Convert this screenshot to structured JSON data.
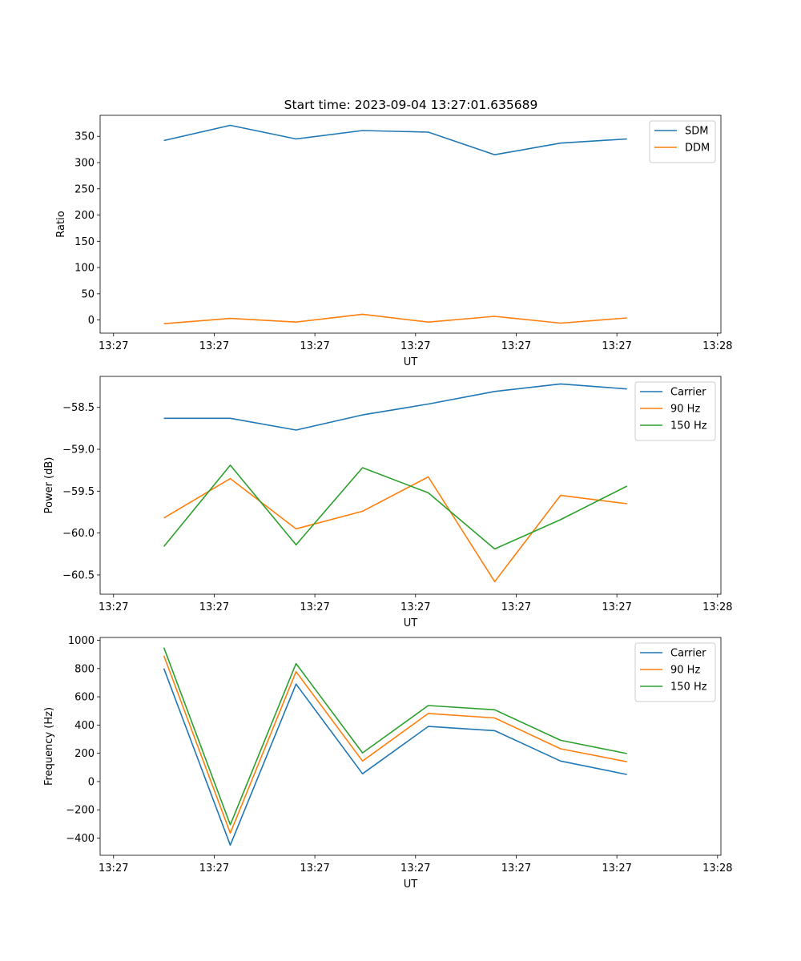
{
  "figure_title": "Start time: 2023-09-04 13:27:01.635689",
  "colors": {
    "blue": "#1f77b4",
    "orange": "#ff7f0e",
    "green": "#2ca02c"
  },
  "chart_data": [
    {
      "type": "line",
      "title": "Start time: 2023-09-04 13:27:01.635689",
      "xlabel": "UT",
      "ylabel": "Ratio",
      "xlim": [
        -0.2,
        9.05
      ],
      "ylim": [
        -25,
        390
      ],
      "x_ticks": [
        0,
        1.5,
        3,
        4.5,
        6,
        7.5,
        9
      ],
      "x_tick_labels": [
        "13:27",
        "13:27",
        "13:27",
        "13:27",
        "13:27",
        "13:27",
        "13:28"
      ],
      "y_ticks": [
        0,
        50,
        100,
        150,
        200,
        250,
        300,
        350
      ],
      "y_tick_labels": [
        "0",
        "50",
        "100",
        "150",
        "200",
        "250",
        "300",
        "350"
      ],
      "x": [
        0.75,
        1.74,
        2.72,
        3.71,
        4.69,
        5.68,
        6.66,
        7.65
      ],
      "series": [
        {
          "name": "SDM",
          "color": "#1f77b4",
          "values": [
            342,
            371,
            345,
            361,
            358,
            315,
            337,
            345
          ]
        },
        {
          "name": "DDM",
          "color": "#ff7f0e",
          "values": [
            -7,
            3,
            -4,
            11,
            -4,
            7,
            -6,
            4
          ]
        }
      ],
      "legend": "top-right"
    },
    {
      "type": "line",
      "xlabel": "UT",
      "ylabel": "Power (dB)",
      "xlim": [
        -0.2,
        9.05
      ],
      "ylim": [
        -60.73,
        -58.13
      ],
      "x_ticks": [
        0,
        1.5,
        3,
        4.5,
        6,
        7.5,
        9
      ],
      "x_tick_labels": [
        "13:27",
        "13:27",
        "13:27",
        "13:27",
        "13:27",
        "13:27",
        "13:28"
      ],
      "y_ticks": [
        -60.5,
        -60.0,
        -59.5,
        -59.0,
        -58.5
      ],
      "y_tick_labels": [
        "−60.5",
        "−60.0",
        "−59.5",
        "−59.0",
        "−58.5"
      ],
      "x": [
        0.75,
        1.74,
        2.72,
        3.71,
        4.69,
        5.68,
        6.66,
        7.65
      ],
      "series": [
        {
          "name": "Carrier",
          "color": "#1f77b4",
          "values": [
            -58.63,
            -58.63,
            -58.77,
            -58.59,
            -58.46,
            -58.31,
            -58.22,
            -58.28
          ]
        },
        {
          "name": "90 Hz",
          "color": "#ff7f0e",
          "values": [
            -59.82,
            -59.35,
            -59.95,
            -59.74,
            -59.33,
            -60.58,
            -59.55,
            -59.65
          ]
        },
        {
          "name": "150 Hz",
          "color": "#2ca02c",
          "values": [
            -60.16,
            -59.19,
            -60.14,
            -59.22,
            -59.52,
            -60.19,
            -59.84,
            -59.44
          ]
        }
      ],
      "legend": "top-right"
    },
    {
      "type": "line",
      "xlabel": "UT",
      "ylabel": "Frequency (Hz)",
      "xlim": [
        -0.2,
        9.05
      ],
      "ylim": [
        -522,
        1020
      ],
      "x_ticks": [
        0,
        1.5,
        3,
        4.5,
        6,
        7.5,
        9
      ],
      "x_tick_labels": [
        "13:27",
        "13:27",
        "13:27",
        "13:27",
        "13:27",
        "13:27",
        "13:28"
      ],
      "y_ticks": [
        -400,
        -200,
        0,
        200,
        400,
        600,
        800,
        1000
      ],
      "y_tick_labels": [
        "−400",
        "−200",
        "0",
        "200",
        "400",
        "600",
        "800",
        "1000"
      ],
      "x": [
        0.75,
        1.74,
        2.72,
        3.71,
        4.69,
        5.68,
        6.66,
        7.65
      ],
      "series": [
        {
          "name": "Carrier",
          "color": "#1f77b4",
          "values": [
            800,
            -450,
            690,
            55,
            390,
            360,
            145,
            50
          ]
        },
        {
          "name": "90 Hz",
          "color": "#ff7f0e",
          "values": [
            890,
            -365,
            778,
            145,
            482,
            450,
            232,
            140
          ]
        },
        {
          "name": "150 Hz",
          "color": "#2ca02c",
          "values": [
            948,
            -306,
            835,
            203,
            538,
            508,
            292,
            198
          ]
        }
      ],
      "legend": "top-right"
    }
  ]
}
